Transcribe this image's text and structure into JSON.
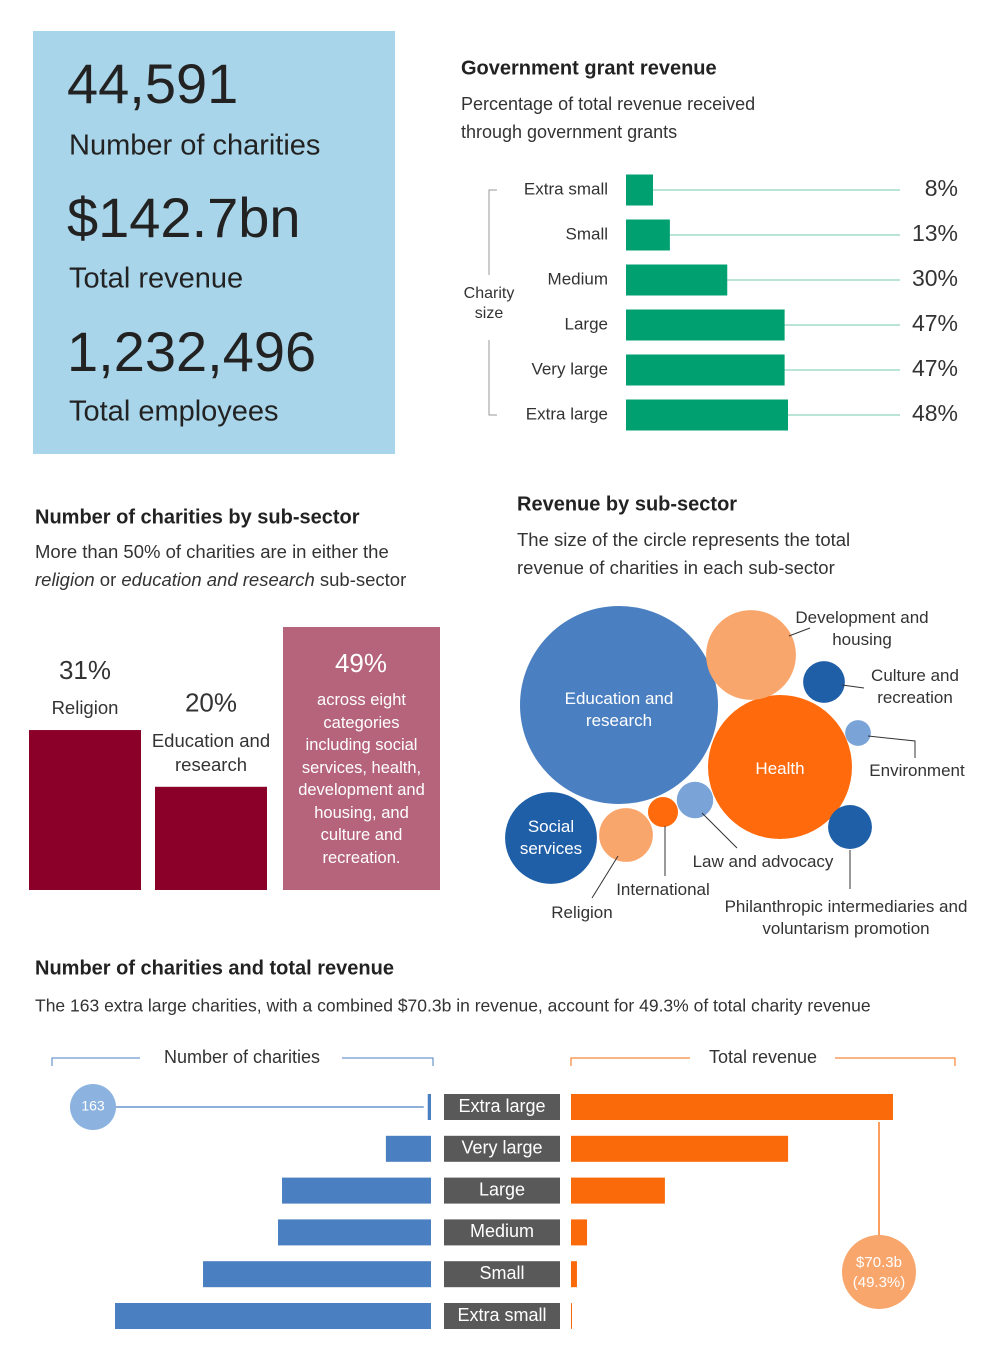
{
  "stats": [
    {
      "value": "44,591",
      "label": "Number of charities"
    },
    {
      "value": "$142.7bn",
      "label": "Total revenue"
    },
    {
      "value": "1,232,496",
      "label": "Total employees"
    }
  ],
  "chart_data": [
    {
      "type": "hbar",
      "title": "Government grant revenue",
      "subtitle": "Percentage of total revenue received through government grants",
      "axis_label": "Charity size",
      "categories": [
        "Extra small",
        "Small",
        "Medium",
        "Large",
        "Very large",
        "Extra large"
      ],
      "values": [
        8,
        13,
        30,
        47,
        47,
        48
      ],
      "value_labels": [
        "8%",
        "13%",
        "30%",
        "47%",
        "47%",
        "48%"
      ],
      "color": "#00a071"
    },
    {
      "type": "bar",
      "title": "Number of charities by sub-sector",
      "subtitle": [
        "More than 50% of charities are in either the ",
        "religion",
        " or ",
        "education and research",
        " sub-sector"
      ],
      "categories": [
        "Religion",
        "Education and research"
      ],
      "values": [
        31,
        20
      ],
      "value_labels": [
        "31%",
        "20%"
      ],
      "color": "#8b0029",
      "other": {
        "value": 49,
        "value_label": "49%",
        "description": "across eight categories including social services, health, development and housing, and culture and recreation.",
        "color": "#b5647c"
      }
    },
    {
      "type": "bubble",
      "title": "Revenue by sub-sector",
      "subtitle": "The size of the circle represents the total revenue of charities in each sub-sector",
      "categories": [
        "Education and research",
        "Health",
        "Social services",
        "Development and housing",
        "Religion",
        "Philanthropic intermediaries and voluntarism promotion",
        "Culture and recreation",
        "Law and advocacy",
        "International",
        "Environment"
      ],
      "values": [
        65.1,
        34.4,
        14.0,
        13.4,
        4.8,
        3.2,
        2.9,
        2.2,
        1.5,
        1.1
      ],
      "colors": [
        "#4a7fc1",
        "#ff6a0d",
        "#1f5fa8",
        "#f9a66c",
        "#f9a66c",
        "#1f5fa8",
        "#1f5fa8",
        "#7aa4d8",
        "#ff6a0d",
        "#7aa4d8"
      ]
    },
    {
      "type": "diverging",
      "title": "Number of charities and total revenue",
      "subtitle": "The 163 extra large charities, with a combined $70.3b in revenue, account for 49.3% of total charity revenue",
      "categories": [
        "Extra large",
        "Very large",
        "Large",
        "Medium",
        "Small",
        "Extra small"
      ],
      "series": [
        {
          "name": "Number of charities",
          "color": "#4a7fc1",
          "values": [
            163,
            2250,
            7430,
            7630,
            11370,
            15760
          ]
        },
        {
          "name": "Total revenue",
          "color": "#fa6a0a",
          "values": [
            70.3,
            47.4,
            20.5,
            3.5,
            1.3,
            0.2
          ]
        }
      ],
      "annotation": {
        "value_label": "$70.3b",
        "share_label": "(49.3%)"
      }
    }
  ]
}
